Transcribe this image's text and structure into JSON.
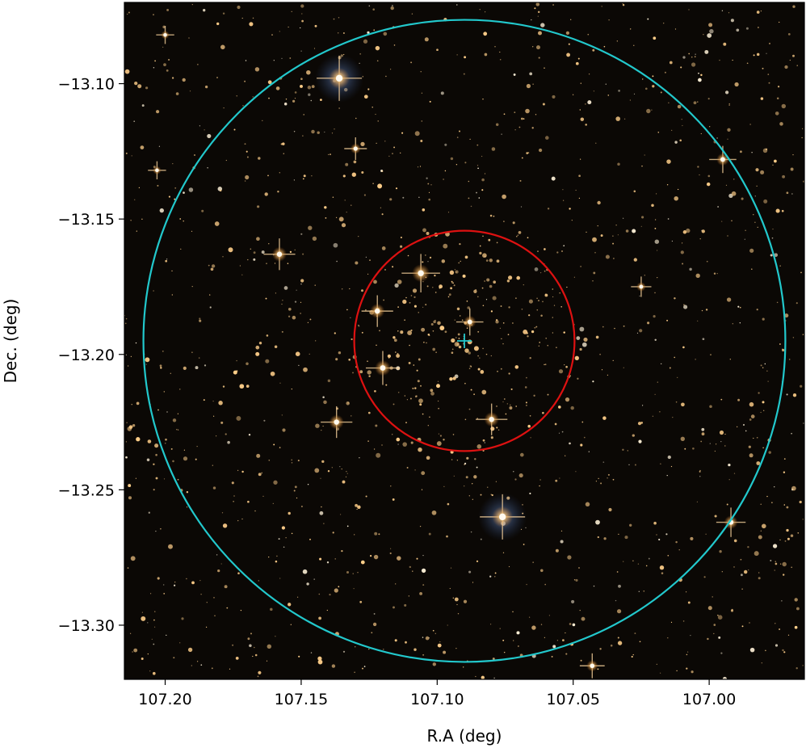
{
  "figure": {
    "xlabel": "R.A (deg)",
    "ylabel": "Dec. (deg)",
    "x_ticks": [
      "107.20",
      "107.15",
      "107.10",
      "107.05",
      "107.00"
    ],
    "y_ticks": [
      "−13.10",
      "−13.15",
      "−13.20",
      "−13.25",
      "−13.30"
    ]
  },
  "chart_data": {
    "type": "image",
    "xlabel": "R.A (deg)",
    "ylabel": "Dec. (deg)",
    "xlim": [
      107.215,
      106.965
    ],
    "ylim": [
      -13.32,
      -13.07
    ],
    "x_tick_values": [
      107.2,
      107.15,
      107.1,
      107.05,
      107.0
    ],
    "y_tick_values": [
      -13.1,
      -13.15,
      -13.2,
      -13.25,
      -13.3
    ],
    "background": "star field",
    "overlays": [
      {
        "shape": "circle",
        "color": "#22c8cc",
        "center": [
          107.09,
          -13.195
        ],
        "radius_deg": 0.118
      },
      {
        "shape": "circle",
        "color": "#dd1111",
        "center": [
          107.09,
          -13.195
        ],
        "radius_deg": 0.0405
      },
      {
        "shape": "cross",
        "color": "#22c8cc",
        "center": [
          107.09,
          -13.195
        ]
      }
    ],
    "bright_stars": [
      {
        "ra": 107.136,
        "dec": -13.098,
        "mag": 1.0
      },
      {
        "ra": 107.076,
        "dec": -13.26,
        "mag": 1.0
      },
      {
        "ra": 107.106,
        "dec": -13.17,
        "mag": 0.85
      },
      {
        "ra": 107.122,
        "dec": -13.184,
        "mag": 0.7
      },
      {
        "ra": 107.12,
        "dec": -13.205,
        "mag": 0.75
      },
      {
        "ra": 107.088,
        "dec": -13.188,
        "mag": 0.6
      },
      {
        "ra": 107.08,
        "dec": -13.224,
        "mag": 0.7
      },
      {
        "ra": 107.137,
        "dec": -13.225,
        "mag": 0.7
      },
      {
        "ra": 107.158,
        "dec": -13.163,
        "mag": 0.7
      },
      {
        "ra": 106.992,
        "dec": -13.262,
        "mag": 0.65
      },
      {
        "ra": 106.995,
        "dec": -13.128,
        "mag": 0.6
      },
      {
        "ra": 107.043,
        "dec": -13.315,
        "mag": 0.55
      },
      {
        "ra": 107.13,
        "dec": -13.124,
        "mag": 0.5
      },
      {
        "ra": 107.025,
        "dec": -13.175,
        "mag": 0.45
      },
      {
        "ra": 107.2,
        "dec": -13.082,
        "mag": 0.4
      },
      {
        "ra": 107.203,
        "dec": -13.132,
        "mag": 0.4
      }
    ],
    "colors": {
      "cyan_circle": "#22c8cc",
      "red_circle": "#dd1111",
      "sky": "#0b0805",
      "star": "#ffcf8a"
    }
  }
}
